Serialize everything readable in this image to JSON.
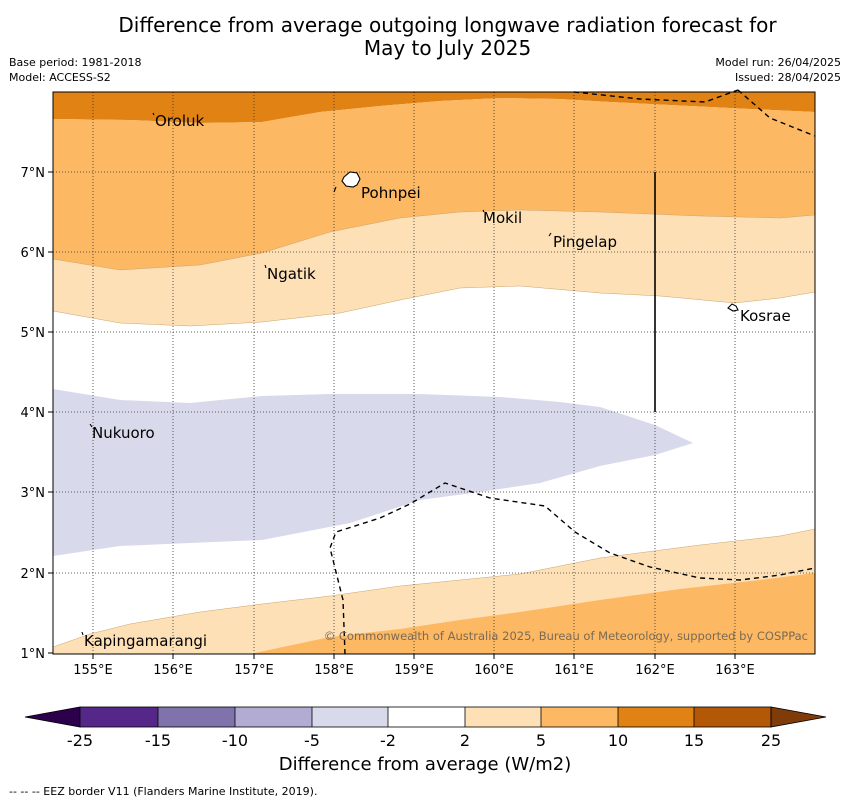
{
  "title": {
    "line1": "Difference from average outgoing longwave radiation forecast for",
    "line2": "May to July 2025"
  },
  "meta_left": {
    "base_period": "Base period: 1981-2018",
    "model": "Model: ACCESS-S2"
  },
  "meta_right": {
    "model_run": "Model run: 26/04/2025",
    "issued": "Issued: 28/04/2025"
  },
  "map": {
    "lon_ticks": [
      "155°E",
      "156°E",
      "157°E",
      "158°E",
      "159°E",
      "160°E",
      "161°E",
      "162°E",
      "163°E"
    ],
    "lat_ticks": [
      "7°N",
      "6°N",
      "5°N",
      "4°N",
      "3°N",
      "2°N",
      "1°N"
    ],
    "extent": {
      "lon": [
        154.5,
        164.0
      ],
      "lat": [
        1.0,
        8.0
      ]
    },
    "places": [
      {
        "name": "Oroluk",
        "lon": 155.75,
        "lat": 7.6
      },
      {
        "name": "Pohnpei",
        "lon": 158.2,
        "lat": 6.9
      },
      {
        "name": "Mokil",
        "lon": 159.9,
        "lat": 6.5
      },
      {
        "name": "Pingelap",
        "lon": 160.7,
        "lat": 6.2
      },
      {
        "name": "Ngatik",
        "lon": 157.15,
        "lat": 5.8
      },
      {
        "name": "Kosrae",
        "lon": 163.0,
        "lat": 5.3
      },
      {
        "name": "Nukuoro",
        "lon": 154.95,
        "lat": 3.85
      },
      {
        "name": "Kapingamarangi",
        "lon": 154.8,
        "lat": 1.1
      }
    ],
    "copyright": "© Commonwealth of Australia 2025, Bureau of Meteorology, supported by COSPPac"
  },
  "colorbar": {
    "ticks": [
      "-25",
      "-15",
      "-10",
      "-5",
      "-2",
      "2",
      "5",
      "10",
      "15",
      "25"
    ],
    "colors": [
      "#542788",
      "#8073ac",
      "#b2abd2",
      "#d8daeb",
      "#ffffff",
      "#fee0b6",
      "#fdb863",
      "#e08214",
      "#b35806"
    ],
    "under_color": "#2d004b",
    "over_color": "#7f3b08",
    "label": "Difference from average (W/m2)"
  },
  "legend_note": "--  --  -- EEZ border V11 (Flanders Marine Institute, 2019)."
}
